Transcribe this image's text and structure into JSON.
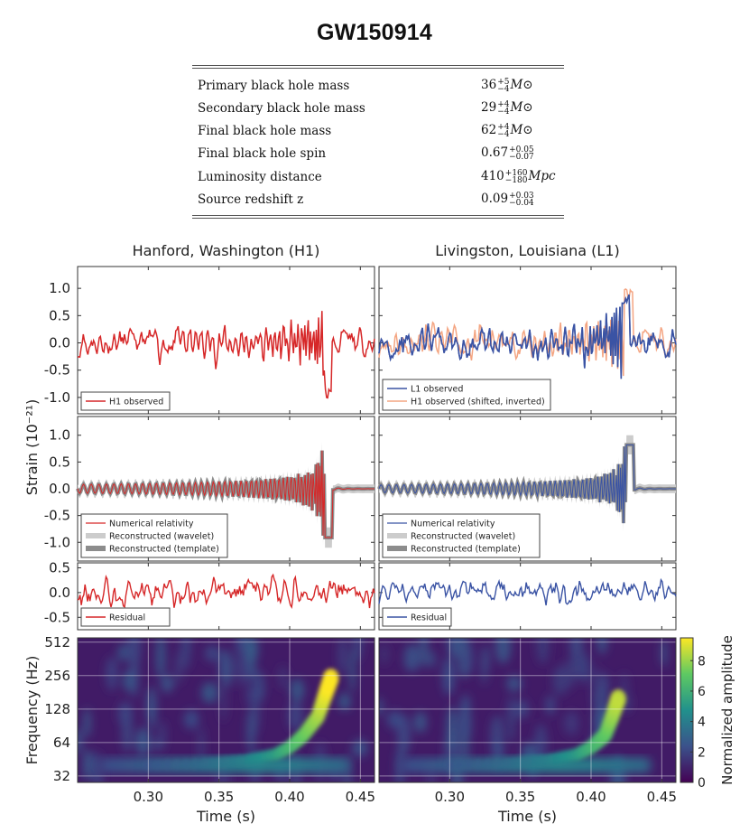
{
  "page_title": "GW150914",
  "parameters": [
    {
      "label": "Primary black hole mass",
      "value": "36",
      "plus": "+5",
      "minus": "−4",
      "unit": "M⊙"
    },
    {
      "label": "Secondary black hole mass",
      "value": "29",
      "plus": "+4",
      "minus": "−4",
      "unit": "M⊙"
    },
    {
      "label": "Final black hole mass",
      "value": "62",
      "plus": "+4",
      "minus": "−4",
      "unit": "M⊙"
    },
    {
      "label": "Final black hole spin",
      "value": "0.67",
      "plus": "+0.05",
      "minus": "−0.07",
      "unit": ""
    },
    {
      "label": "Luminosity distance",
      "value": "410",
      "plus": "+160",
      "minus": "−180",
      "unit": "Mpc"
    },
    {
      "label": "Source redshift z",
      "value": "0.09",
      "plus": "+0.03",
      "minus": "−0.04",
      "unit": ""
    }
  ],
  "chart_data": [
    {
      "type": "line",
      "panel": "strain-observed",
      "titles": [
        "Hanford, Washington (H1)",
        "Livingston, Louisiana (L1)"
      ],
      "ylabel": "Strain (10⁻²¹)",
      "ylim": [
        -1.3,
        1.4
      ],
      "yticks": [
        "1.0",
        "0.5",
        "0.0",
        "-0.5",
        "-1.0"
      ],
      "xlim": [
        0.25,
        0.46
      ],
      "legend": [
        [
          {
            "name": "H1 observed",
            "color": "#d62728"
          }
        ],
        [
          {
            "name": "L1 observed",
            "color": "#3a53a4"
          },
          {
            "name": "H1 observed (shifted, inverted)",
            "color": "#f4a582"
          }
        ]
      ],
      "series": [
        {
          "name": "H1 observed",
          "column": 0,
          "color": "#d62728",
          "x": [
            0.25,
            0.27,
            0.29,
            0.31,
            0.33,
            0.35,
            0.37,
            0.38,
            0.39,
            0.4,
            0.405,
            0.41,
            0.415,
            0.42,
            0.425,
            0.43,
            0.44,
            0.46
          ],
          "y": [
            0.0,
            0.1,
            -0.1,
            0.15,
            -0.1,
            0.05,
            0.2,
            -0.3,
            0.45,
            -0.5,
            0.6,
            -0.8,
            1.0,
            -1.0,
            0.9,
            -0.6,
            0.1,
            0.0
          ]
        },
        {
          "name": "L1 observed",
          "column": 1,
          "color": "#3a53a4",
          "x": [
            0.25,
            0.27,
            0.29,
            0.31,
            0.33,
            0.35,
            0.37,
            0.38,
            0.39,
            0.4,
            0.405,
            0.41,
            0.415,
            0.42,
            0.425,
            0.43,
            0.44,
            0.46
          ],
          "y": [
            -0.1,
            0.15,
            -0.2,
            0.2,
            -0.15,
            0.1,
            -0.2,
            0.3,
            -0.5,
            0.6,
            -0.7,
            0.85,
            -1.0,
            0.9,
            -0.7,
            0.4,
            0.0,
            0.05
          ]
        },
        {
          "name": "H1 observed (shifted, inverted)",
          "column": 1,
          "color": "#f4a582",
          "x": [
            0.25,
            0.27,
            0.29,
            0.31,
            0.33,
            0.35,
            0.37,
            0.38,
            0.39,
            0.4,
            0.405,
            0.41,
            0.415,
            0.42,
            0.425,
            0.43,
            0.44,
            0.46
          ],
          "y": [
            0.0,
            -0.1,
            0.1,
            -0.15,
            0.1,
            -0.05,
            -0.2,
            0.3,
            -0.45,
            0.5,
            -0.6,
            0.8,
            -1.0,
            1.0,
            -0.9,
            0.6,
            -0.1,
            0.0
          ]
        }
      ]
    },
    {
      "type": "line",
      "panel": "strain-reconstructed",
      "ylim": [
        -1.35,
        1.35
      ],
      "yticks": [
        "1.0",
        "0.5",
        "0.0",
        "-0.5",
        "-1.0"
      ],
      "xlim": [
        0.25,
        0.46
      ],
      "legend": [
        [
          {
            "name": "Numerical relativity",
            "color": "#d62728"
          },
          {
            "name": "Reconstructed (wavelet)",
            "color": "#cccccc"
          },
          {
            "name": "Reconstructed (template)",
            "color": "#8c8c8c"
          }
        ],
        [
          {
            "name": "Numerical relativity",
            "color": "#3a53a4"
          },
          {
            "name": "Reconstructed (wavelet)",
            "color": "#cccccc"
          },
          {
            "name": "Reconstructed (template)",
            "color": "#8c8c8c"
          }
        ]
      ],
      "series": [
        {
          "name": "Numerical relativity",
          "column": 0,
          "color": "#d62728",
          "x": [
            0.25,
            0.3,
            0.33,
            0.35,
            0.37,
            0.38,
            0.39,
            0.4,
            0.405,
            0.41,
            0.415,
            0.42,
            0.425,
            0.43,
            0.44,
            0.46
          ],
          "y": [
            0.0,
            0.05,
            -0.15,
            0.2,
            -0.3,
            0.4,
            -0.5,
            0.6,
            -0.7,
            0.85,
            -1.0,
            1.1,
            -0.9,
            0.5,
            0.1,
            0.0
          ]
        },
        {
          "name": "Numerical relativity",
          "column": 1,
          "color": "#3a53a4",
          "x": [
            0.25,
            0.3,
            0.33,
            0.35,
            0.37,
            0.38,
            0.39,
            0.4,
            0.405,
            0.41,
            0.415,
            0.42,
            0.425,
            0.43,
            0.44,
            0.46
          ],
          "y": [
            0.0,
            -0.05,
            0.15,
            -0.2,
            0.3,
            -0.4,
            0.5,
            -0.6,
            0.7,
            -0.8,
            0.9,
            -0.9,
            0.6,
            -0.3,
            0.0,
            0.0
          ]
        }
      ]
    },
    {
      "type": "line",
      "panel": "residual",
      "ylim": [
        -0.75,
        0.6
      ],
      "yticks": [
        "0.5",
        "0.0",
        "-0.5"
      ],
      "xlim": [
        0.25,
        0.46
      ],
      "legend": [
        [
          {
            "name": "Residual",
            "color": "#d62728"
          }
        ],
        [
          {
            "name": "Residual",
            "color": "#3a53a4"
          }
        ]
      ]
    },
    {
      "type": "heatmap",
      "panel": "time-frequency",
      "xlabel": "Time (s)",
      "ylabel": "Frequency (Hz)",
      "xlim": [
        0.25,
        0.46
      ],
      "xticks": [
        "0.30",
        "0.35",
        "0.40",
        "0.45"
      ],
      "yticks": [
        "512",
        "256",
        "128",
        "64",
        "32"
      ],
      "colorbar": {
        "label": "Normalized amplitude",
        "ticks": [
          "8",
          "6",
          "4",
          "2",
          "0"
        ],
        "range": [
          0,
          9.5
        ]
      },
      "tracks": [
        {
          "column": 0,
          "t": [
            0.3,
            0.34,
            0.37,
            0.39,
            0.4,
            0.41,
            0.42,
            0.425,
            0.43
          ],
          "f": [
            40,
            42,
            45,
            50,
            58,
            75,
            110,
            170,
            260
          ],
          "peak": 9.0
        },
        {
          "column": 1,
          "t": [
            0.3,
            0.34,
            0.37,
            0.39,
            0.4,
            0.41,
            0.415,
            0.42
          ],
          "f": [
            40,
            42,
            45,
            50,
            58,
            75,
            110,
            170
          ],
          "peak": 7.5
        }
      ]
    }
  ],
  "colors": {
    "h1": "#d62728",
    "l1": "#3a53a4",
    "h1_shifted": "#f4a582",
    "wavelet": "#cccccc",
    "template": "#8c8c8c"
  }
}
